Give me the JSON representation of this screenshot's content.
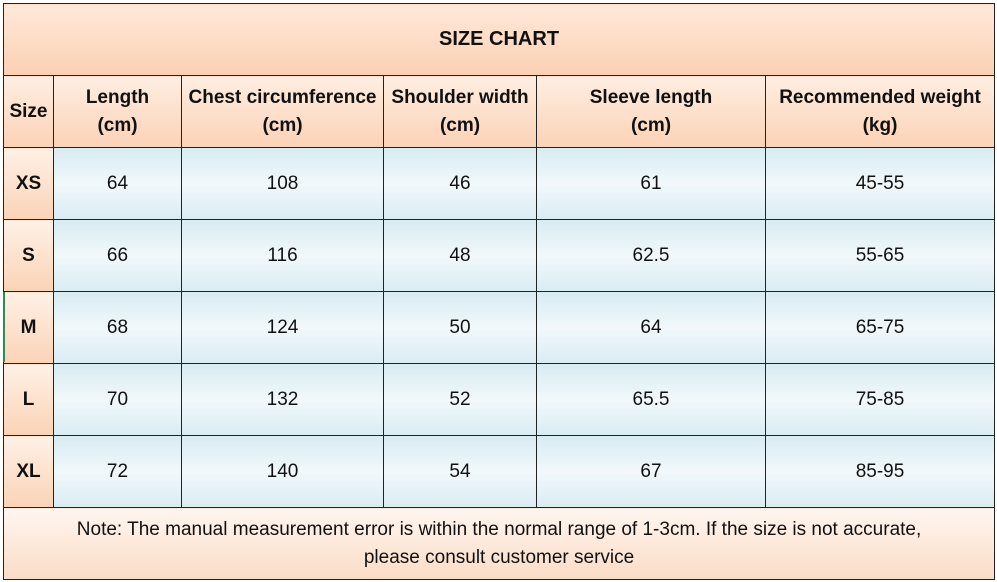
{
  "title": "SIZE CHART",
  "headers": {
    "size": "Size",
    "length": [
      "Length",
      "(cm)"
    ],
    "chest": [
      "Chest circumference",
      "(cm)"
    ],
    "shoulder": [
      "Shoulder width",
      "(cm)"
    ],
    "sleeve": [
      "Sleeve length",
      "(cm)"
    ],
    "weight": [
      "Recommended weight",
      "(kg)"
    ]
  },
  "rows": [
    {
      "size": "XS",
      "length": "64",
      "chest": "108",
      "shoulder": "46",
      "sleeve": "61",
      "weight": "45-55"
    },
    {
      "size": "S",
      "length": "66",
      "chest": "116",
      "shoulder": "48",
      "sleeve": "62.5",
      "weight": "55-65"
    },
    {
      "size": "M",
      "length": "68",
      "chest": "124",
      "shoulder": "50",
      "sleeve": "64",
      "weight": "65-75"
    },
    {
      "size": "L",
      "length": "70",
      "chest": "132",
      "shoulder": "52",
      "sleeve": "65.5",
      "weight": "75-85"
    },
    {
      "size": "XL",
      "length": "72",
      "chest": "140",
      "shoulder": "54",
      "sleeve": "67",
      "weight": "85-95"
    }
  ],
  "note": [
    "Note: The manual measurement error is within the normal range of 1-3cm. If the size is not accurate,",
    "please consult customer service"
  ]
}
